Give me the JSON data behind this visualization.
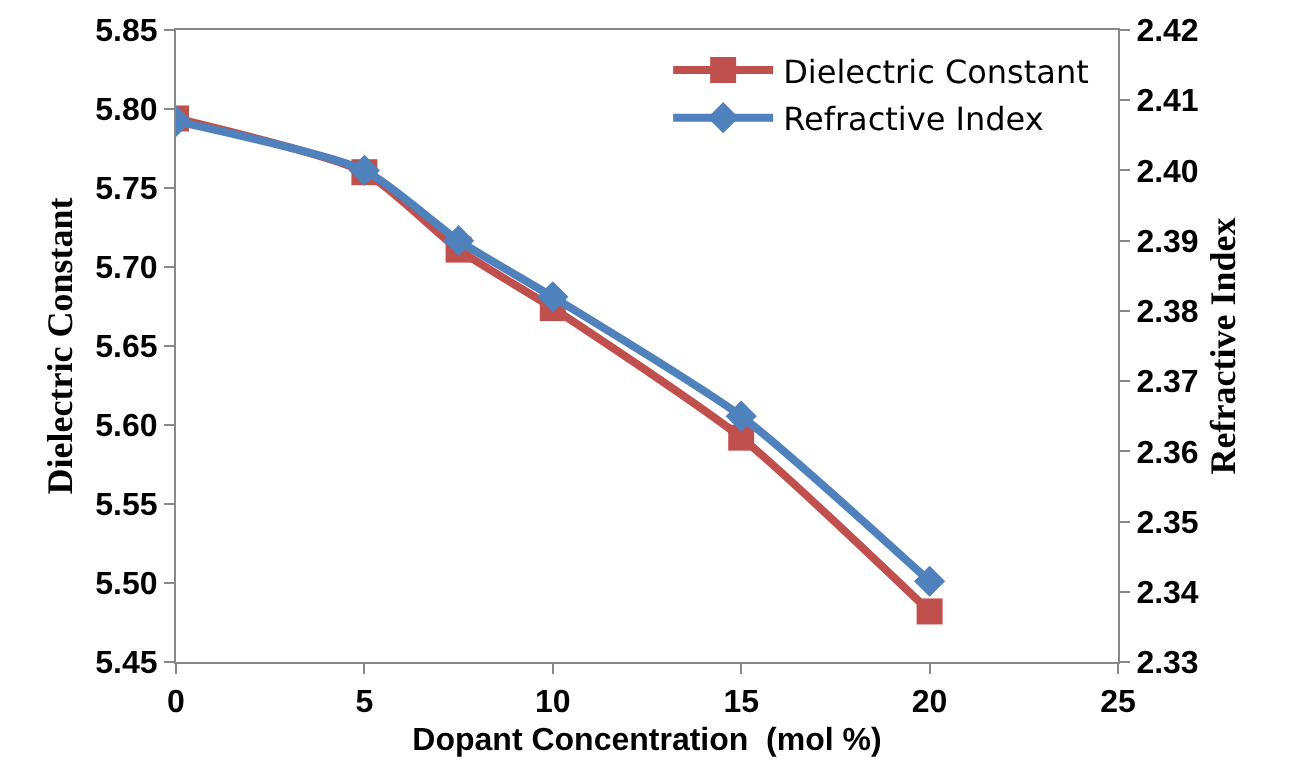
{
  "chart_data": {
    "type": "line",
    "xlabel": "Dopant Concentration  (mol %)",
    "ylabel": "Dielectric Constant",
    "y2label": "Refractive Index",
    "x": [
      0,
      5,
      7.5,
      10,
      15,
      20
    ],
    "series": [
      {
        "name": "Dielectric Constant",
        "color": "#c0504d",
        "marker": "square",
        "values": [
          5.794,
          5.76,
          5.711,
          5.674,
          5.592,
          5.482
        ]
      },
      {
        "name": "Refractive Index",
        "color": "#4f81bd",
        "marker": "diamond",
        "axis": "y2",
        "values": [
          2.407,
          2.4,
          2.39,
          2.382,
          2.365,
          2.3415
        ]
      }
    ],
    "xlim": [
      0,
      25
    ],
    "xticks": [
      0,
      5,
      10,
      15,
      20,
      25
    ],
    "ylim": [
      5.45,
      5.85
    ],
    "yticks": [
      {
        "value": 5.45,
        "label": "5.45"
      },
      {
        "value": 5.5,
        "label": "5.50"
      },
      {
        "value": 5.55,
        "label": "5.55"
      },
      {
        "value": 5.6,
        "label": "5.60"
      },
      {
        "value": 5.65,
        "label": "5.65"
      },
      {
        "value": 5.7,
        "label": "5.70"
      },
      {
        "value": 5.75,
        "label": "5.75"
      },
      {
        "value": 5.8,
        "label": "5.80"
      },
      {
        "value": 5.85,
        "label": "5.85"
      }
    ],
    "y2lim": [
      2.33,
      2.42
    ],
    "y2ticks": [
      {
        "value": 2.33,
        "label": "2.33"
      },
      {
        "value": 2.34,
        "label": "2.34"
      },
      {
        "value": 2.35,
        "label": "2.35"
      },
      {
        "value": 2.36,
        "label": "2.36"
      },
      {
        "value": 2.37,
        "label": "2.37"
      },
      {
        "value": 2.38,
        "label": "2.38"
      },
      {
        "value": 2.39,
        "label": "2.39"
      },
      {
        "value": 2.4,
        "label": "2.40"
      },
      {
        "value": 2.41,
        "label": "2.41"
      },
      {
        "value": 2.42,
        "label": "2.42"
      }
    ],
    "legend": "top right",
    "line_style": "solid"
  }
}
